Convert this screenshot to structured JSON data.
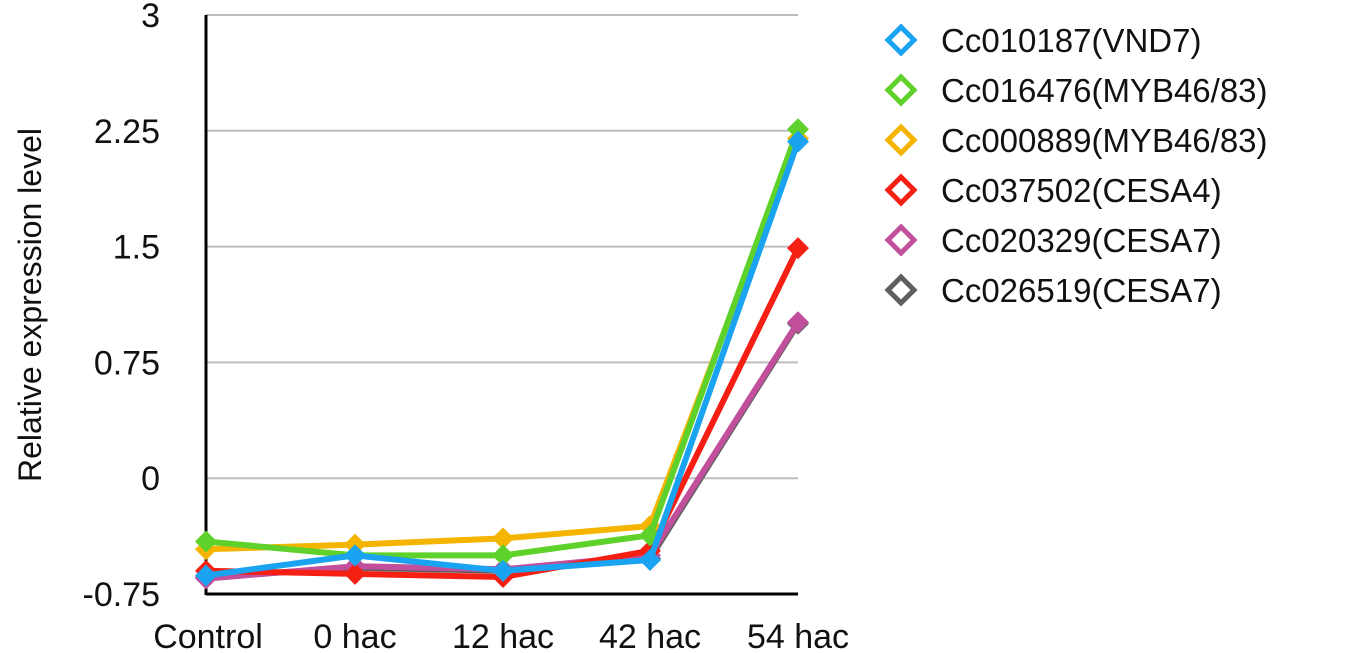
{
  "chart_data": {
    "type": "line",
    "title": "",
    "xlabel": "",
    "ylabel": "Relative expression level",
    "categories": [
      "Control",
      "0 hac",
      "12 hac",
      "42 hac",
      "54 hac"
    ],
    "ylim": [
      -0.75,
      3
    ],
    "yticks": [
      -0.75,
      0,
      0.75,
      1.5,
      2.25,
      3
    ],
    "ytick_labels": [
      "-0.75",
      "0",
      "0.75",
      "1.5",
      "2.25",
      "3"
    ],
    "grid": true,
    "legend_position": "right",
    "series": [
      {
        "name": "Cc010187(VND7)",
        "color": "#1aa3f0",
        "values": [
          -0.63,
          -0.5,
          -0.6,
          -0.53,
          2.18
        ]
      },
      {
        "name": "Cc016476(MYB46/83)",
        "color": "#5ed12a",
        "values": [
          -0.41,
          -0.5,
          -0.5,
          -0.37,
          2.26
        ]
      },
      {
        "name": "Cc000889(MYB46/83)",
        "color": "#f5b400",
        "values": [
          -0.46,
          -0.43,
          -0.39,
          -0.31,
          2.2
        ]
      },
      {
        "name": "Cc037502(CESA4)",
        "color": "#f51f14",
        "values": [
          -0.6,
          -0.62,
          -0.64,
          -0.47,
          1.49
        ]
      },
      {
        "name": "Cc020329(CESA7)",
        "color": "#c14f9c",
        "values": [
          -0.65,
          -0.57,
          -0.59,
          -0.5,
          1.01
        ]
      },
      {
        "name": "Cc026519(CESA7)",
        "color": "#5f5f5f",
        "values": [
          -0.64,
          -0.58,
          -0.6,
          -0.52,
          1.0
        ]
      }
    ]
  }
}
